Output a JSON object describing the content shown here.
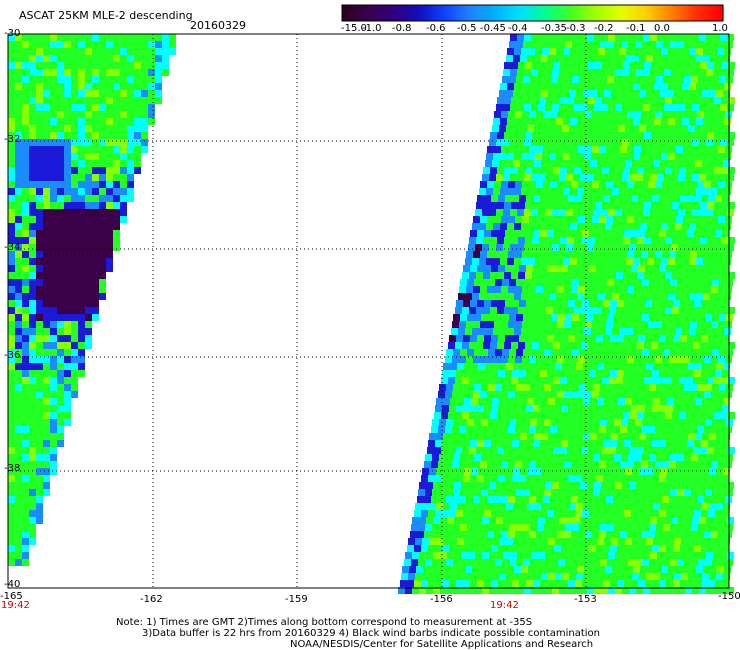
{
  "header": {
    "title": "ASCAT 25KM MLE-2 descending",
    "date": "20160329"
  },
  "colorbar": {
    "labels": [
      "-15.0",
      "-1.0",
      "-0.8",
      "-0.6",
      "-0.5",
      "-0.45",
      "-0.4",
      "-0.35",
      "-0.3",
      "-0.2",
      "-0.1",
      "0.0",
      "1.0"
    ],
    "colors": [
      "#2a0020",
      "#3a0050",
      "#300080",
      "#1010c0",
      "#1040ff",
      "#2080ff",
      "#00b0ff",
      "#00e0ff",
      "#00ff90",
      "#40ff20",
      "#a0ff00",
      "#e0ff00",
      "#ffd000",
      "#ff8000",
      "#ff3000",
      "#ff0000"
    ]
  },
  "map": {
    "lat_labels": [
      "-30",
      "-32",
      "-34",
      "-36",
      "-38",
      "-40"
    ],
    "lon_labels": [
      "-165",
      "-162",
      "-159",
      "-156",
      "-153",
      "-150"
    ],
    "swath_times": [
      "19:42",
      "19:42"
    ]
  },
  "footer": {
    "note_line1": "Note: 1) Times are GMT 2)Times along bottom correspond to measurement at -35S",
    "note_line2": "3)Data buffer is 22 hrs from 20160329 4) Black wind barbs indicate possible contamination",
    "note_line3": "NOAA/NESDIS/Center for Satellite Applications and Research"
  },
  "legend_colors": {
    "very_low": "#3a0048",
    "low": "#1a1ad8",
    "mid_low": "#1a8cff",
    "mid": "#00ffff",
    "high": "#22ff22",
    "very_high": "#88ff00"
  }
}
